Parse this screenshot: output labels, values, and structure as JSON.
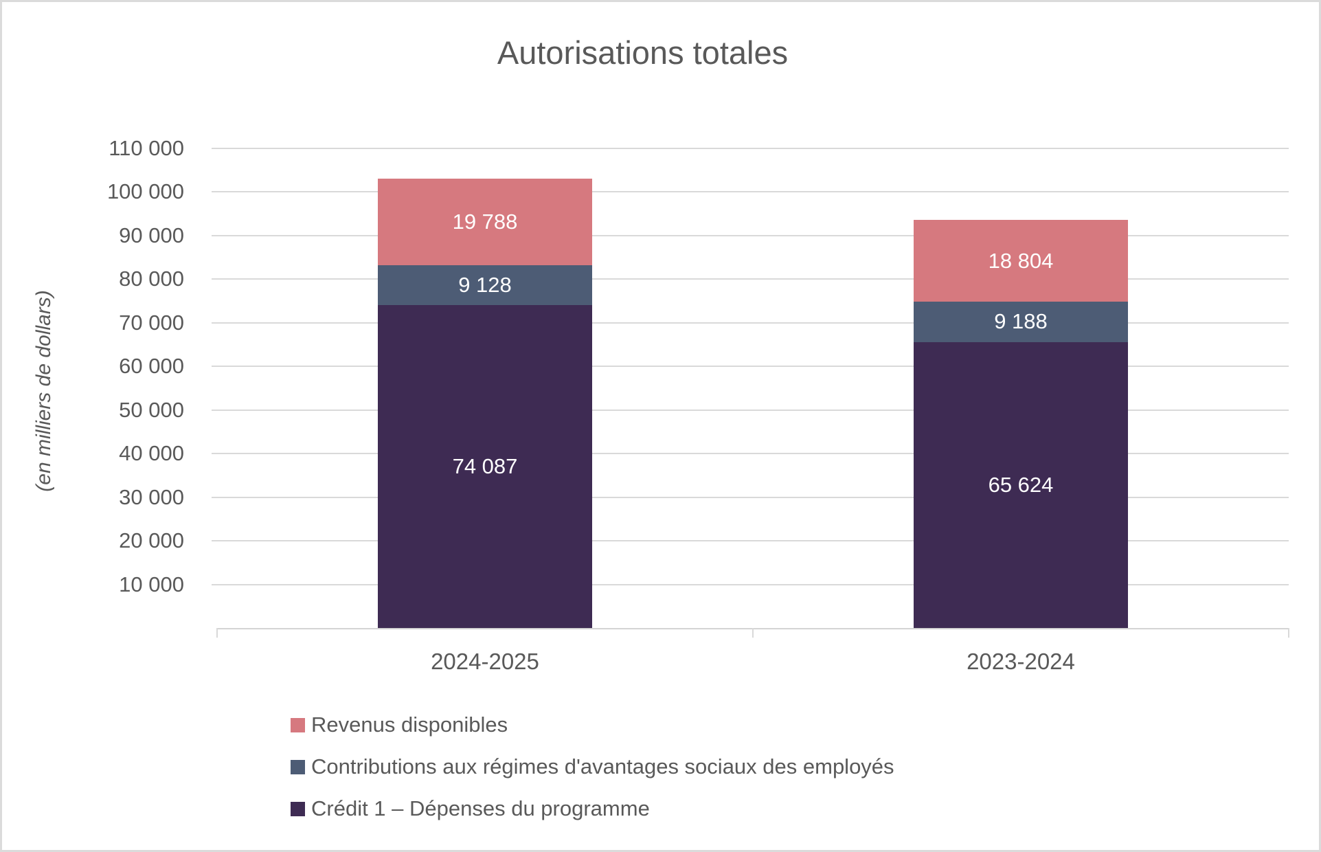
{
  "chart_data": {
    "type": "bar",
    "stacked": true,
    "title": "Autorisations totales",
    "ylabel": "(en milliers de dollars)",
    "xlabel": "",
    "categories": [
      "2024-2025",
      "2023-2024"
    ],
    "series": [
      {
        "name": "Crédit 1 – Dépenses du programme",
        "color": "#3E2B53",
        "values": [
          74087,
          65624
        ],
        "value_labels": [
          "74 087",
          "65 624"
        ]
      },
      {
        "name": "Contributions aux régimes d'avantages sociaux des employés",
        "color": "#4D5C75",
        "values": [
          9128,
          9188
        ],
        "value_labels": [
          "9 128",
          "9 188"
        ]
      },
      {
        "name": "Revenus disponibles",
        "color": "#D6797F",
        "values": [
          19788,
          18804
        ],
        "value_labels": [
          "19 788",
          "18 804"
        ]
      }
    ],
    "totals": [
      103003,
      93616
    ],
    "y_axis": {
      "min": 0,
      "max": 110000,
      "step": 10000,
      "tick_labels": [
        "10 000",
        "20 000",
        "30 000",
        "40 000",
        "50 000",
        "60 000",
        "70 000",
        "80 000",
        "90 000",
        "100 000",
        "110 000"
      ]
    },
    "grid": true,
    "legend_position": "bottom-left",
    "legend_display_order": [
      "Revenus disponibles",
      "Contributions aux régimes d'avantages sociaux des employés",
      "Crédit 1 – Dépenses du programme"
    ],
    "colors": {
      "text": "#595959",
      "value_label_text": "#FFFFFF",
      "gridline": "#D9D9D9",
      "frame_border": "#DBDBDB"
    }
  }
}
